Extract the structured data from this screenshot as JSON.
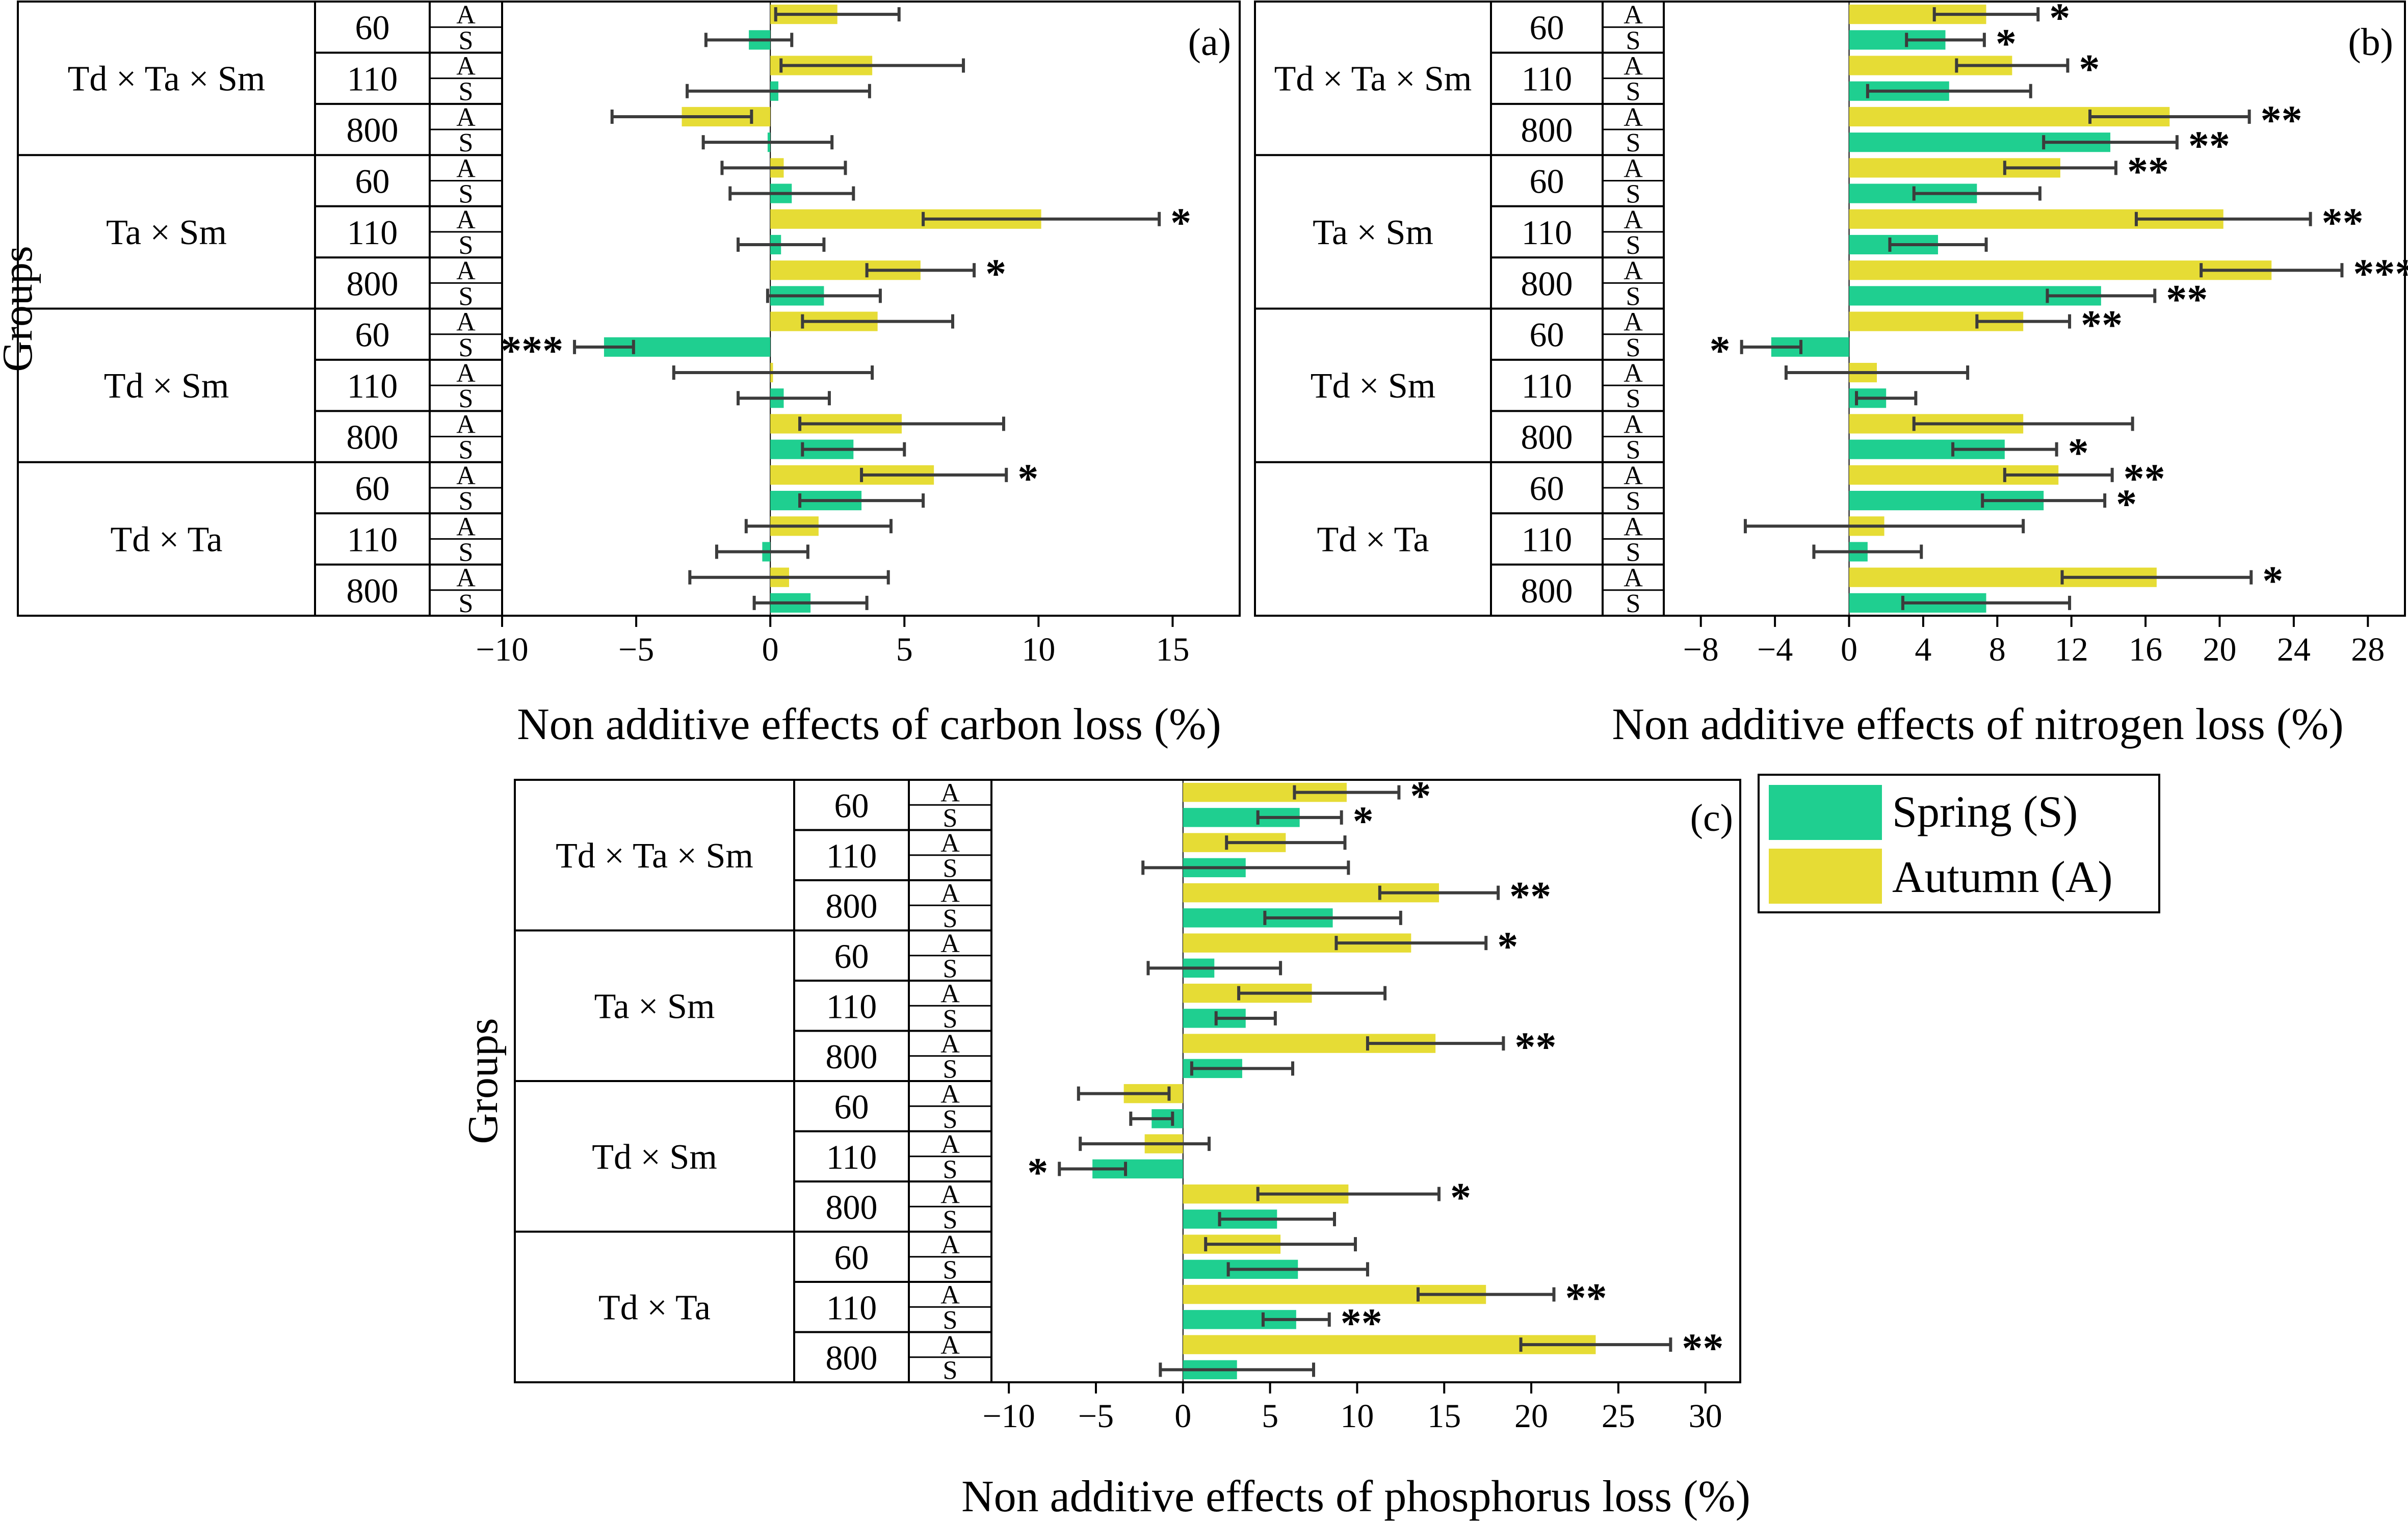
{
  "colors": {
    "spring": "#1fcf90",
    "autumn": "#e6dc35",
    "errorbar": "#3c3c3c",
    "axis": "#000000"
  },
  "shared": {
    "ylabel": "Groups",
    "groups": [
      "Td × Ta × Sm",
      "Ta × Sm",
      "Td × Sm",
      "Td × Ta"
    ],
    "doses": [
      "60",
      "110",
      "800"
    ],
    "season_codes": [
      "A",
      "S"
    ],
    "legend": {
      "spring": "Spring (S)",
      "autumn": "Autumn (A)"
    }
  },
  "chart_data": [
    {
      "type": "bar",
      "panel": "(a)",
      "xlabel": "Non additive effects of carbon loss (%)",
      "xlim": [
        -10,
        17.5
      ],
      "xticks": [
        -10,
        -5,
        0,
        5,
        10,
        15
      ],
      "xtick_labels": [
        "−10",
        "−5",
        "0",
        "5",
        "10",
        "15"
      ],
      "groups": [
        "Td × Ta × Sm",
        "Ta × Sm",
        "Td × Sm",
        "Td × Ta"
      ],
      "series": [
        {
          "group": "Td × Ta × Sm",
          "dose": "60",
          "season": "A",
          "value": 2.5,
          "err": 2.3,
          "sig": ""
        },
        {
          "group": "Td × Ta × Sm",
          "dose": "60",
          "season": "S",
          "value": -0.8,
          "err": 1.6,
          "sig": ""
        },
        {
          "group": "Td × Ta × Sm",
          "dose": "110",
          "season": "A",
          "value": 3.8,
          "err": 3.4,
          "sig": ""
        },
        {
          "group": "Td × Ta × Sm",
          "dose": "110",
          "season": "S",
          "value": 0.3,
          "err": 3.4,
          "sig": ""
        },
        {
          "group": "Td × Ta × Sm",
          "dose": "800",
          "season": "A",
          "value": -3.3,
          "err": 2.6,
          "sig": ""
        },
        {
          "group": "Td × Ta × Sm",
          "dose": "800",
          "season": "S",
          "value": -0.1,
          "err": 2.4,
          "sig": ""
        },
        {
          "group": "Ta × Sm",
          "dose": "60",
          "season": "A",
          "value": 0.5,
          "err": 2.3,
          "sig": ""
        },
        {
          "group": "Ta × Sm",
          "dose": "60",
          "season": "S",
          "value": 0.8,
          "err": 2.3,
          "sig": ""
        },
        {
          "group": "Ta × Sm",
          "dose": "110",
          "season": "A",
          "value": 10.1,
          "err": 4.4,
          "sig": "*"
        },
        {
          "group": "Ta × Sm",
          "dose": "110",
          "season": "S",
          "value": 0.4,
          "err": 1.6,
          "sig": ""
        },
        {
          "group": "Ta × Sm",
          "dose": "800",
          "season": "A",
          "value": 5.6,
          "err": 2.0,
          "sig": "*"
        },
        {
          "group": "Ta × Sm",
          "dose": "800",
          "season": "S",
          "value": 2.0,
          "err": 2.1,
          "sig": ""
        },
        {
          "group": "Td × Sm",
          "dose": "60",
          "season": "A",
          "value": 4.0,
          "err": 2.8,
          "sig": ""
        },
        {
          "group": "Td × Sm",
          "dose": "60",
          "season": "S",
          "value": -6.2,
          "err": 1.1,
          "sig": "***"
        },
        {
          "group": "Td × Sm",
          "dose": "110",
          "season": "A",
          "value": 0.1,
          "err": 3.7,
          "sig": ""
        },
        {
          "group": "Td × Sm",
          "dose": "110",
          "season": "S",
          "value": 0.5,
          "err": 1.7,
          "sig": ""
        },
        {
          "group": "Td × Sm",
          "dose": "800",
          "season": "A",
          "value": 4.9,
          "err": 3.8,
          "sig": ""
        },
        {
          "group": "Td × Sm",
          "dose": "800",
          "season": "S",
          "value": 3.1,
          "err": 1.9,
          "sig": ""
        },
        {
          "group": "Td × Ta",
          "dose": "60",
          "season": "A",
          "value": 6.1,
          "err": 2.7,
          "sig": "*"
        },
        {
          "group": "Td × Ta",
          "dose": "60",
          "season": "S",
          "value": 3.4,
          "err": 2.3,
          "sig": ""
        },
        {
          "group": "Td × Ta",
          "dose": "110",
          "season": "A",
          "value": 1.8,
          "err": 2.7,
          "sig": ""
        },
        {
          "group": "Td × Ta",
          "dose": "110",
          "season": "S",
          "value": -0.3,
          "err": 1.7,
          "sig": ""
        },
        {
          "group": "Td × Ta",
          "dose": "800",
          "season": "A",
          "value": 0.7,
          "err": 3.7,
          "sig": ""
        },
        {
          "group": "Td × Ta",
          "dose": "800",
          "season": "S",
          "value": 1.5,
          "err": 2.1,
          "sig": ""
        }
      ]
    },
    {
      "type": "bar",
      "panel": "(b)",
      "xlabel": "Non additive effects of nitrogen loss (%)",
      "xlim": [
        -10,
        30
      ],
      "xticks": [
        -8,
        -4,
        0,
        4,
        8,
        12,
        16,
        20,
        24,
        28
      ],
      "xtick_labels": [
        "−8",
        "−4",
        "0",
        "4",
        "8",
        "12",
        "16",
        "20",
        "24",
        "28"
      ],
      "groups": [
        "Td × Ta × Sm",
        "Ta × Sm",
        "Td × Sm",
        "Td × Ta"
      ],
      "series": [
        {
          "group": "Td × Ta × Sm",
          "dose": "60",
          "season": "A",
          "value": 7.4,
          "err": 2.8,
          "sig": "*"
        },
        {
          "group": "Td × Ta × Sm",
          "dose": "60",
          "season": "S",
          "value": 5.2,
          "err": 2.1,
          "sig": "*"
        },
        {
          "group": "Td × Ta × Sm",
          "dose": "110",
          "season": "A",
          "value": 8.8,
          "err": 3.0,
          "sig": "*"
        },
        {
          "group": "Td × Ta × Sm",
          "dose": "110",
          "season": "S",
          "value": 5.4,
          "err": 4.4,
          "sig": ""
        },
        {
          "group": "Td × Ta × Sm",
          "dose": "800",
          "season": "A",
          "value": 17.3,
          "err": 4.3,
          "sig": "**"
        },
        {
          "group": "Td × Ta × Sm",
          "dose": "800",
          "season": "S",
          "value": 14.1,
          "err": 3.6,
          "sig": "**"
        },
        {
          "group": "Ta × Sm",
          "dose": "60",
          "season": "A",
          "value": 11.4,
          "err": 3.0,
          "sig": "**"
        },
        {
          "group": "Ta × Sm",
          "dose": "60",
          "season": "S",
          "value": 6.9,
          "err": 3.4,
          "sig": ""
        },
        {
          "group": "Ta × Sm",
          "dose": "110",
          "season": "A",
          "value": 20.2,
          "err": 4.7,
          "sig": "**"
        },
        {
          "group": "Ta × Sm",
          "dose": "110",
          "season": "S",
          "value": 4.8,
          "err": 2.6,
          "sig": ""
        },
        {
          "group": "Ta × Sm",
          "dose": "800",
          "season": "A",
          "value": 22.8,
          "err": 3.8,
          "sig": "***"
        },
        {
          "group": "Ta × Sm",
          "dose": "800",
          "season": "S",
          "value": 13.6,
          "err": 2.9,
          "sig": "**"
        },
        {
          "group": "Td × Sm",
          "dose": "60",
          "season": "A",
          "value": 9.4,
          "err": 2.5,
          "sig": "**"
        },
        {
          "group": "Td × Sm",
          "dose": "60",
          "season": "S",
          "value": -4.2,
          "err": 1.6,
          "sig": "*"
        },
        {
          "group": "Td × Sm",
          "dose": "110",
          "season": "A",
          "value": 1.5,
          "err": 4.9,
          "sig": ""
        },
        {
          "group": "Td × Sm",
          "dose": "110",
          "season": "S",
          "value": 2.0,
          "err": 1.6,
          "sig": ""
        },
        {
          "group": "Td × Sm",
          "dose": "800",
          "season": "A",
          "value": 9.4,
          "err": 5.9,
          "sig": ""
        },
        {
          "group": "Td × Sm",
          "dose": "800",
          "season": "S",
          "value": 8.4,
          "err": 2.8,
          "sig": "*"
        },
        {
          "group": "Td × Ta",
          "dose": "60",
          "season": "A",
          "value": 11.3,
          "err": 2.9,
          "sig": "**"
        },
        {
          "group": "Td × Ta",
          "dose": "60",
          "season": "S",
          "value": 10.5,
          "err": 3.3,
          "sig": "*"
        },
        {
          "group": "Td × Ta",
          "dose": "110",
          "season": "A",
          "value": 1.9,
          "err": 7.5,
          "sig": ""
        },
        {
          "group": "Td × Ta",
          "dose": "110",
          "season": "S",
          "value": 1.0,
          "err": 2.9,
          "sig": ""
        },
        {
          "group": "Td × Ta",
          "dose": "800",
          "season": "A",
          "value": 16.6,
          "err": 5.1,
          "sig": "*"
        },
        {
          "group": "Td × Ta",
          "dose": "800",
          "season": "S",
          "value": 7.4,
          "err": 4.5,
          "sig": ""
        }
      ]
    },
    {
      "type": "bar",
      "panel": "(c)",
      "xlabel": "Non additive effects of phosphorus loss (%)",
      "xlim": [
        -11,
        32
      ],
      "xticks": [
        -10,
        -5,
        0,
        5,
        10,
        15,
        20,
        25,
        30
      ],
      "xtick_labels": [
        "−10",
        "−5",
        "0",
        "5",
        "10",
        "15",
        "20",
        "25",
        "30"
      ],
      "groups": [
        "Td × Ta × Sm",
        "Ta × Sm",
        "Td × Sm",
        "Td × Ta"
      ],
      "series": [
        {
          "group": "Td × Ta × Sm",
          "dose": "60",
          "season": "A",
          "value": 9.4,
          "err": 3.0,
          "sig": "*"
        },
        {
          "group": "Td × Ta × Sm",
          "dose": "60",
          "season": "S",
          "value": 6.7,
          "err": 2.4,
          "sig": "*"
        },
        {
          "group": "Td × Ta × Sm",
          "dose": "110",
          "season": "A",
          "value": 5.9,
          "err": 3.4,
          "sig": ""
        },
        {
          "group": "Td × Ta × Sm",
          "dose": "110",
          "season": "S",
          "value": 3.6,
          "err": 5.9,
          "sig": ""
        },
        {
          "group": "Td × Ta × Sm",
          "dose": "800",
          "season": "A",
          "value": 14.7,
          "err": 3.4,
          "sig": "**"
        },
        {
          "group": "Td × Ta × Sm",
          "dose": "800",
          "season": "S",
          "value": 8.6,
          "err": 3.9,
          "sig": ""
        },
        {
          "group": "Ta × Sm",
          "dose": "60",
          "season": "A",
          "value": 13.1,
          "err": 4.3,
          "sig": "*"
        },
        {
          "group": "Ta × Sm",
          "dose": "60",
          "season": "S",
          "value": 1.8,
          "err": 3.8,
          "sig": ""
        },
        {
          "group": "Ta × Sm",
          "dose": "110",
          "season": "A",
          "value": 7.4,
          "err": 4.2,
          "sig": ""
        },
        {
          "group": "Ta × Sm",
          "dose": "110",
          "season": "S",
          "value": 3.6,
          "err": 1.7,
          "sig": ""
        },
        {
          "group": "Ta × Sm",
          "dose": "800",
          "season": "A",
          "value": 14.5,
          "err": 3.9,
          "sig": "**"
        },
        {
          "group": "Ta × Sm",
          "dose": "800",
          "season": "S",
          "value": 3.4,
          "err": 2.9,
          "sig": ""
        },
        {
          "group": "Td × Sm",
          "dose": "60",
          "season": "A",
          "value": -3.4,
          "err": 2.6,
          "sig": ""
        },
        {
          "group": "Td × Sm",
          "dose": "60",
          "season": "S",
          "value": -1.8,
          "err": 1.2,
          "sig": ""
        },
        {
          "group": "Td × Sm",
          "dose": "110",
          "season": "A",
          "value": -2.2,
          "err": 3.7,
          "sig": ""
        },
        {
          "group": "Td × Sm",
          "dose": "110",
          "season": "S",
          "value": -5.2,
          "err": 1.9,
          "sig": "*"
        },
        {
          "group": "Td × Sm",
          "dose": "800",
          "season": "A",
          "value": 9.5,
          "err": 5.2,
          "sig": "*"
        },
        {
          "group": "Td × Sm",
          "dose": "800",
          "season": "S",
          "value": 5.4,
          "err": 3.3,
          "sig": ""
        },
        {
          "group": "Td × Ta",
          "dose": "60",
          "season": "A",
          "value": 5.6,
          "err": 4.3,
          "sig": ""
        },
        {
          "group": "Td × Ta",
          "dose": "60",
          "season": "S",
          "value": 6.6,
          "err": 4.0,
          "sig": ""
        },
        {
          "group": "Td × Ta",
          "dose": "110",
          "season": "A",
          "value": 17.4,
          "err": 3.9,
          "sig": "**"
        },
        {
          "group": "Td × Ta",
          "dose": "110",
          "season": "S",
          "value": 6.5,
          "err": 1.9,
          "sig": "**"
        },
        {
          "group": "Td × Ta",
          "dose": "800",
          "season": "A",
          "value": 23.7,
          "err": 4.3,
          "sig": "**"
        },
        {
          "group": "Td × Ta",
          "dose": "800",
          "season": "S",
          "value": 3.1,
          "err": 4.4,
          "sig": ""
        }
      ]
    }
  ]
}
